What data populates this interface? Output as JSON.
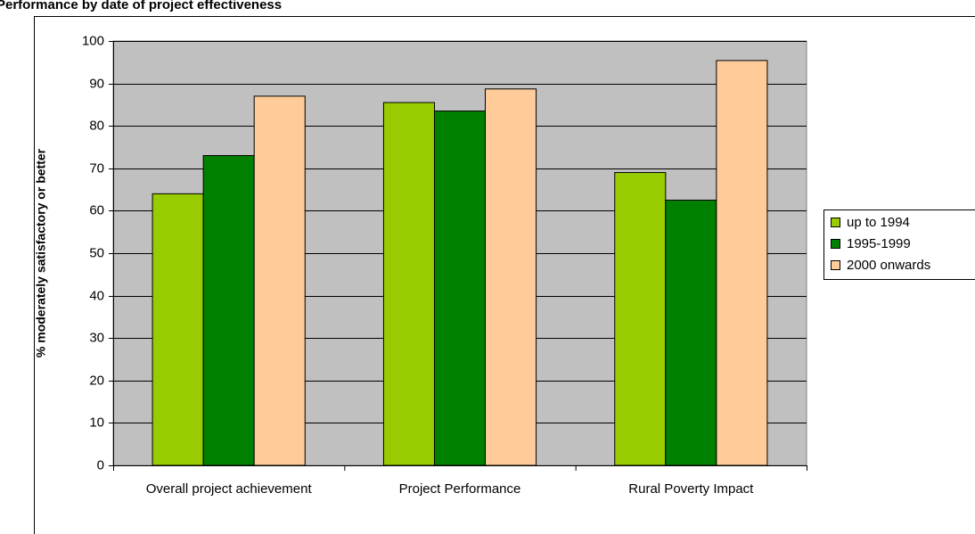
{
  "chart_data": {
    "type": "bar",
    "title": "Performance by date of project effectiveness",
    "y_label": "% moderately satisfactory or better",
    "categories": [
      "Overall project achievement",
      "Project Performance",
      "Rural Poverty Impact"
    ],
    "series": [
      {
        "name": "up to 1994",
        "color": "#99cc00",
        "values": [
          64,
          85.5,
          69
        ]
      },
      {
        "name": "1995-1999",
        "color": "#008000",
        "values": [
          73,
          83.5,
          62.5
        ]
      },
      {
        "name": "2000 onwards",
        "color": "#ffcc99",
        "values": [
          87,
          88.7,
          95.4
        ]
      }
    ],
    "ylim": [
      0,
      100
    ],
    "yticks": [
      0,
      10,
      20,
      30,
      40,
      50,
      60,
      70,
      80,
      90,
      100
    ],
    "grid": true,
    "legend": "right",
    "plot_background": "#c0c0c0"
  }
}
